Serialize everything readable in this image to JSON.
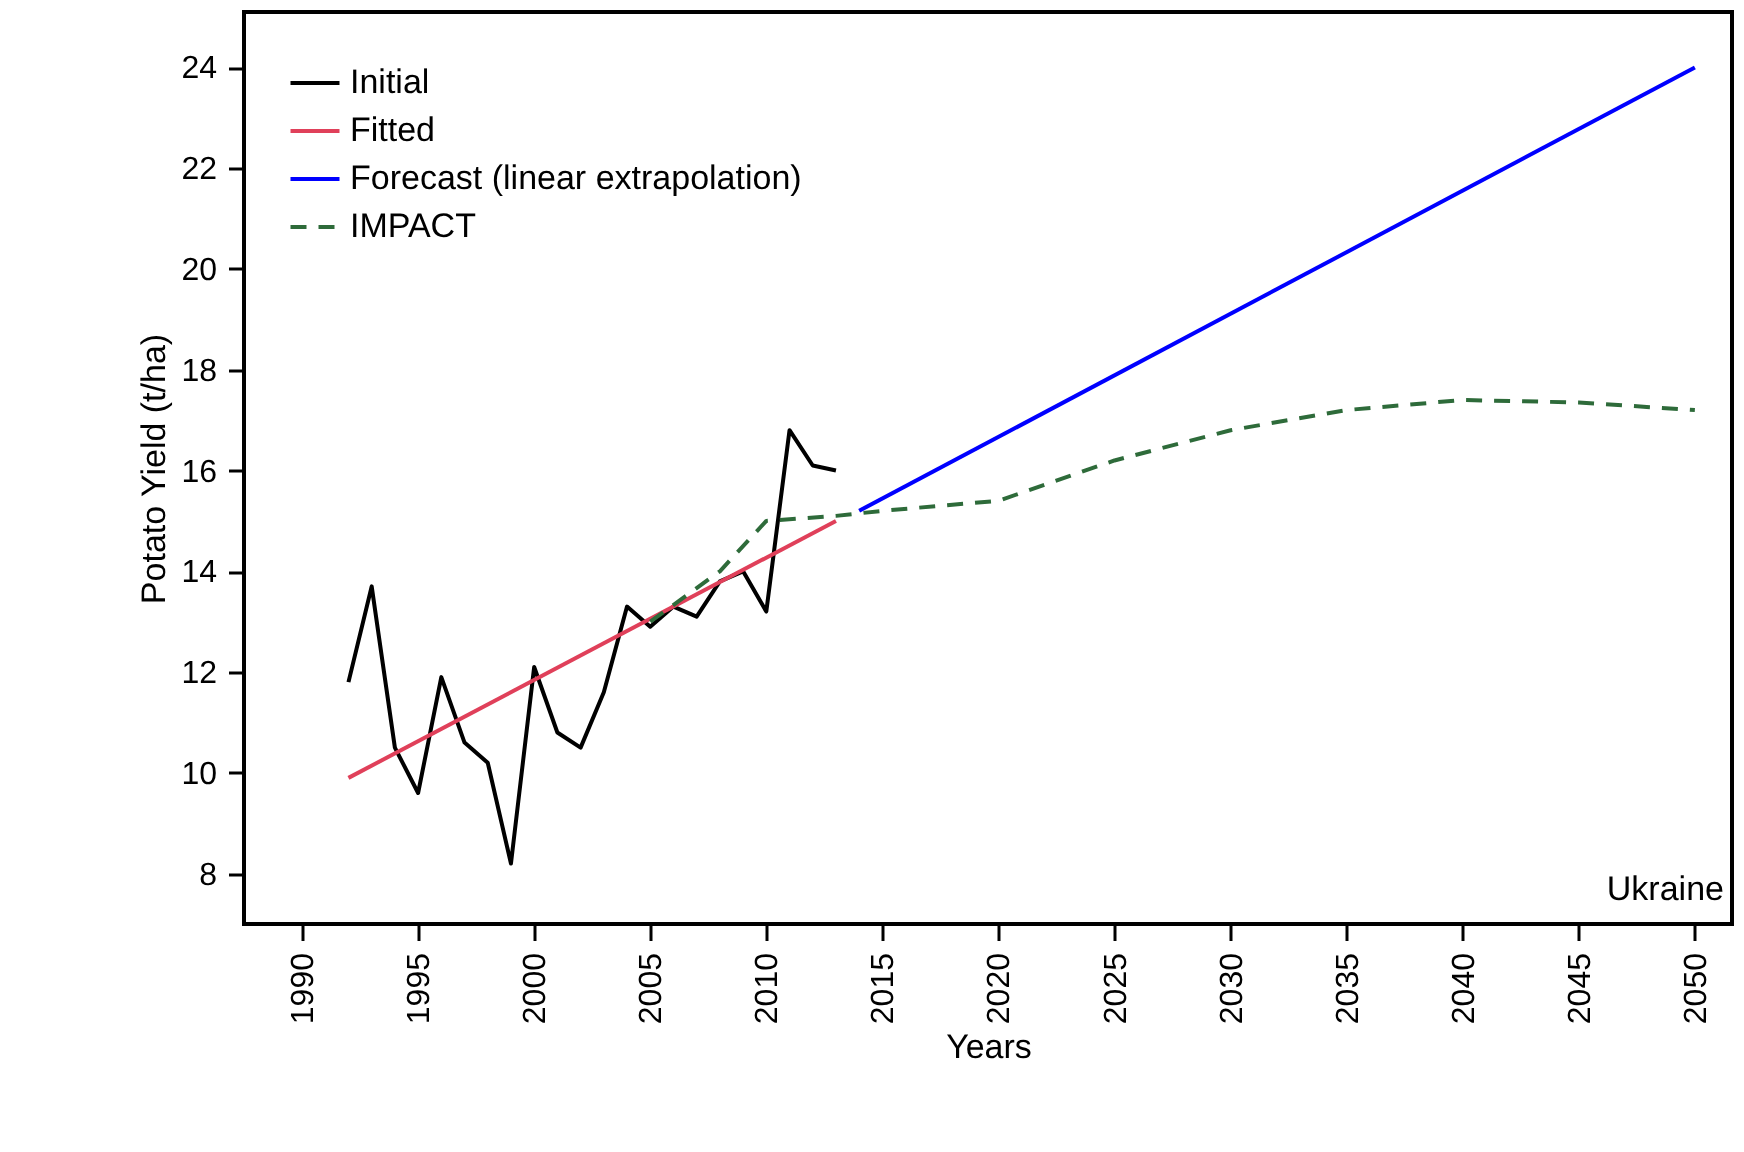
{
  "chart_data": {
    "type": "line",
    "xlabel": "Years",
    "ylabel": "Potato Yield (t/ha)",
    "annotations": [
      "Ukraine"
    ],
    "xlim": [
      1987.5,
      2051.6
    ],
    "xticks": [
      1990,
      1995,
      2000,
      2005,
      2010,
      2015,
      2020,
      2025,
      2030,
      2035,
      2040,
      2045,
      2050
    ],
    "ylim": [
      7,
      25.1
    ],
    "yticks": [
      8,
      10,
      12,
      14,
      16,
      18,
      20,
      22,
      24
    ],
    "grid": false,
    "legend": "top left",
    "series": [
      {
        "name": "Initial",
        "color": "#000000",
        "x": [
          1992,
          1993,
          1994,
          1995,
          1996,
          1997,
          1998,
          1999,
          2000,
          2001,
          2002,
          2003,
          2004,
          2005,
          2006,
          2007,
          2008,
          2009,
          2010,
          2011,
          2012,
          2013
        ],
        "values": [
          11.8,
          13.7,
          10.5,
          9.6,
          11.9,
          10.6,
          10.2,
          8.2,
          12.1,
          10.8,
          10.5,
          11.6,
          13.3,
          12.9,
          13.3,
          13.1,
          13.8,
          14.0,
          13.2,
          16.8,
          16.1,
          16.0
        ]
      },
      {
        "name": "Fitted",
        "color": "#e0405a",
        "x": [
          1992,
          2013
        ],
        "values": [
          9.9,
          15.0
        ]
      },
      {
        "name": "Forecast (linear extrapolation)",
        "color": "#0000ff",
        "x": [
          2014,
          2050
        ],
        "values": [
          15.2,
          24.0
        ]
      },
      {
        "name": "IMPACT",
        "color": "#2e6b3a",
        "line_style": "dashed",
        "x": [
          2005,
          2008,
          2010,
          2013,
          2015,
          2020,
          2025,
          2030,
          2035,
          2040,
          2045,
          2050
        ],
        "values": [
          13.0,
          14.0,
          15.0,
          15.1,
          15.2,
          15.4,
          16.2,
          16.8,
          17.2,
          17.4,
          17.35,
          17.2
        ]
      }
    ]
  }
}
